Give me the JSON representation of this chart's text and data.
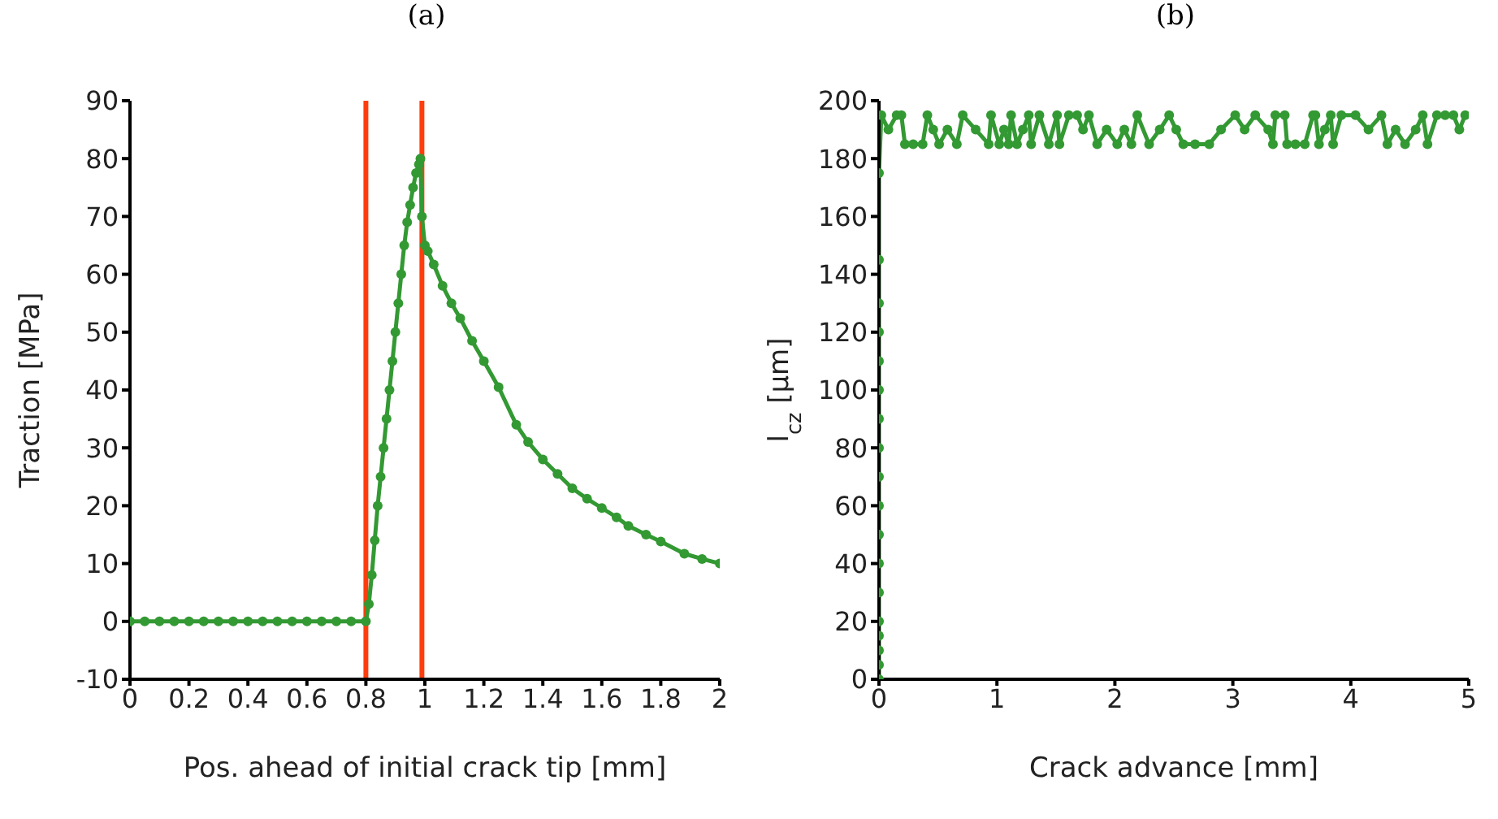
{
  "chart_data": [
    {
      "type": "line",
      "title": "(a)",
      "xlabel": "Pos. ahead of initial crack tip [mm]",
      "ylabel": "Traction [MPa]",
      "xlim": [
        0,
        2
      ],
      "xticks": [
        0,
        0.2,
        0.4,
        0.6,
        0.8,
        1,
        1.2,
        1.4,
        1.6,
        1.8,
        2
      ],
      "ylim": [
        -10,
        90
      ],
      "yticks": [
        -10,
        0,
        10,
        20,
        30,
        40,
        50,
        60,
        70,
        80,
        90
      ],
      "marker": "circle",
      "line_style": "solid",
      "grid": false,
      "ref_lines": [
        {
          "axis": "x",
          "value": 0.8,
          "color": "#ff3d0d"
        },
        {
          "axis": "x",
          "value": 0.99,
          "color": "#ff3d0d"
        }
      ],
      "series": [
        {
          "color": "#339933",
          "x": [
            0,
            0.05,
            0.1,
            0.15,
            0.2,
            0.25,
            0.3,
            0.35,
            0.4,
            0.45,
            0.5,
            0.55,
            0.6,
            0.65,
            0.7,
            0.75,
            0.8,
            0.81,
            0.82,
            0.83,
            0.84,
            0.85,
            0.86,
            0.87,
            0.88,
            0.89,
            0.9,
            0.91,
            0.92,
            0.93,
            0.94,
            0.95,
            0.96,
            0.97,
            0.98,
            0.985,
            0.99,
            1.0,
            1.01,
            1.03,
            1.06,
            1.09,
            1.12,
            1.16,
            1.2,
            1.25,
            1.31,
            1.35,
            1.4,
            1.45,
            1.5,
            1.55,
            1.6,
            1.65,
            1.69,
            1.75,
            1.8,
            1.88,
            1.94,
            2.0
          ],
          "values": [
            0,
            0,
            0,
            0,
            0,
            0,
            0,
            0,
            0,
            0,
            0,
            0,
            0,
            0,
            0,
            0,
            0,
            3,
            8,
            14,
            20,
            25,
            30,
            35,
            40,
            45,
            50,
            55,
            60,
            65,
            69,
            72,
            75,
            77.5,
            79,
            80,
            70,
            65,
            64,
            61.7,
            58,
            55,
            52.4,
            48.5,
            45,
            40.5,
            34,
            31,
            28,
            25.5,
            23,
            21.2,
            19.6,
            18,
            16.5,
            15,
            13.8,
            11.7,
            10.8,
            10
          ]
        }
      ]
    },
    {
      "type": "line",
      "title": "(b)",
      "xlabel": "Crack advance [mm]",
      "ylabel": "l$_{cz}$ [µm]",
      "xlim": [
        0,
        5
      ],
      "xticks": [
        0,
        1,
        2,
        3,
        4,
        5
      ],
      "ylim": [
        0,
        200
      ],
      "yticks": [
        0,
        20,
        40,
        60,
        80,
        100,
        120,
        140,
        160,
        180,
        200
      ],
      "marker": "circle",
      "line_style": "solid",
      "grid": false,
      "series": [
        {
          "color": "#339933",
          "x": [
            0,
            0,
            0,
            0,
            0,
            0,
            0,
            0,
            0,
            0,
            0,
            0,
            0,
            0,
            0,
            0,
            0,
            0,
            0.02,
            0.08,
            0.15,
            0.19,
            0.22,
            0.29,
            0.37,
            0.41,
            0.46,
            0.51,
            0.58,
            0.66,
            0.71,
            0.82,
            0.93,
            0.95,
            1.02,
            1.06,
            1.1,
            1.12,
            1.17,
            1.22,
            1.27,
            1.29,
            1.36,
            1.44,
            1.51,
            1.53,
            1.61,
            1.68,
            1.73,
            1.78,
            1.85,
            1.93,
            2.02,
            2.08,
            2.14,
            2.19,
            2.29,
            2.38,
            2.46,
            2.52,
            2.58,
            2.68,
            2.8,
            2.9,
            3.02,
            3.1,
            3.19,
            3.3,
            3.34,
            3.36,
            3.44,
            3.46,
            3.53,
            3.61,
            3.68,
            3.7,
            3.73,
            3.78,
            3.83,
            3.85,
            3.92,
            4.04,
            4.15,
            4.26,
            4.31,
            4.38,
            4.46,
            4.55,
            4.61,
            4.65,
            4.73,
            4.8,
            4.87,
            4.92,
            4.97
          ],
          "values": [
            0,
            5,
            10,
            15,
            20,
            30,
            40,
            50,
            60,
            70,
            80,
            90,
            100,
            110,
            120,
            130,
            145,
            175,
            195,
            190,
            195,
            195,
            185,
            185,
            185,
            195,
            190,
            185,
            190,
            185,
            195,
            190,
            185,
            195,
            185,
            190,
            185,
            195,
            185,
            190,
            195,
            185,
            195,
            185,
            195,
            185,
            195,
            195,
            190,
            195,
            185,
            190,
            185,
            190,
            185,
            195,
            185,
            190,
            195,
            190,
            185,
            185,
            185,
            190,
            195,
            190,
            195,
            190,
            185,
            195,
            195,
            185,
            185,
            185,
            195,
            195,
            185,
            190,
            195,
            185,
            195,
            195,
            190,
            195,
            185,
            190,
            185,
            190,
            195,
            185,
            195,
            195,
            195,
            190,
            195
          ]
        }
      ]
    }
  ]
}
